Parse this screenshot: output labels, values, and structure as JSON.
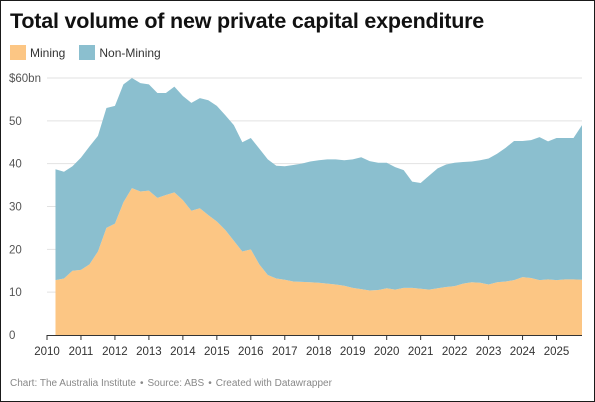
{
  "title": "Total volume of new private capital expenditure",
  "footer": {
    "chart": "Chart: The Australia Institute",
    "source": "Source: ABS",
    "created": "Created with Datawrapper"
  },
  "chart_data": {
    "type": "area",
    "stacked": true,
    "title": "Total volume of new private capital expenditure",
    "xlabel": "",
    "ylabel": "",
    "xlim": [
      2010,
      2025.75
    ],
    "ylim": [
      0,
      60
    ],
    "y_ticks": [
      0,
      10,
      20,
      30,
      40,
      50,
      60
    ],
    "y_tick_labels": [
      "0",
      "10",
      "20",
      "30",
      "40",
      "50",
      "$60bn"
    ],
    "x_ticks": [
      2010,
      2011,
      2012,
      2013,
      2014,
      2015,
      2016,
      2017,
      2018,
      2019,
      2020,
      2021,
      2022,
      2023,
      2024,
      2025
    ],
    "x_tick_labels": [
      "2010",
      "2011",
      "2012",
      "2013",
      "2014",
      "2015",
      "2016",
      "2017",
      "2018",
      "2019",
      "2020",
      "2021",
      "2022",
      "2023",
      "2024",
      "2025"
    ],
    "grid": "horizontal",
    "legend_position": "top-left",
    "x": [
      2010.25,
      2010.5,
      2010.75,
      2011.0,
      2011.25,
      2011.5,
      2011.75,
      2012.0,
      2012.25,
      2012.5,
      2012.75,
      2013.0,
      2013.25,
      2013.5,
      2013.75,
      2014.0,
      2014.25,
      2014.5,
      2014.75,
      2015.0,
      2015.25,
      2015.5,
      2015.75,
      2016.0,
      2016.25,
      2016.5,
      2016.75,
      2017.0,
      2017.25,
      2017.5,
      2017.75,
      2018.0,
      2018.25,
      2018.5,
      2018.75,
      2019.0,
      2019.25,
      2019.5,
      2019.75,
      2020.0,
      2020.25,
      2020.5,
      2020.75,
      2021.0,
      2021.25,
      2021.5,
      2021.75,
      2022.0,
      2022.25,
      2022.5,
      2022.75,
      2023.0,
      2023.25,
      2023.5,
      2023.75,
      2024.0,
      2024.25,
      2024.5,
      2024.75,
      2025.0,
      2025.25,
      2025.5,
      2025.75
    ],
    "series": [
      {
        "name": "Mining",
        "color": "#fcc684",
        "values": [
          12.8,
          13.2,
          15.0,
          15.2,
          16.5,
          19.5,
          25.0,
          26.0,
          31.0,
          34.3,
          33.5,
          33.7,
          32.0,
          32.7,
          33.3,
          31.5,
          29.0,
          29.6,
          28.0,
          26.5,
          24.5,
          22.0,
          19.5,
          20.0,
          16.5,
          14.0,
          13.2,
          12.9,
          12.5,
          12.4,
          12.3,
          12.2,
          12.0,
          11.8,
          11.5,
          11.0,
          10.7,
          10.4,
          10.5,
          10.9,
          10.6,
          11.0,
          11.0,
          10.8,
          10.6,
          10.9,
          11.2,
          11.4,
          12.0,
          12.3,
          12.2,
          11.8,
          12.3,
          12.5,
          12.8,
          13.5,
          13.3,
          12.8,
          13.0,
          12.8,
          13.0,
          13.0,
          12.9
        ]
      },
      {
        "name": "Non-Mining",
        "color": "#8bbfcf",
        "values": [
          25.9,
          24.9,
          24.4,
          26.2,
          27.5,
          27.0,
          28.0,
          27.5,
          27.5,
          25.7,
          25.3,
          24.8,
          24.5,
          23.8,
          24.7,
          24.3,
          25.2,
          25.7,
          26.8,
          27.0,
          26.8,
          27.0,
          25.5,
          26.0,
          27.0,
          27.0,
          26.3,
          26.5,
          27.2,
          27.6,
          28.2,
          28.6,
          29.0,
          29.2,
          29.3,
          30.0,
          30.8,
          30.2,
          29.7,
          29.3,
          28.6,
          27.5,
          24.8,
          24.7,
          26.6,
          28.0,
          28.6,
          28.8,
          28.4,
          28.2,
          28.6,
          29.4,
          30.0,
          31.2,
          32.5,
          31.8,
          32.2,
          33.4,
          32.2,
          33.2,
          33.0,
          33.0,
          36.1
        ]
      }
    ]
  }
}
